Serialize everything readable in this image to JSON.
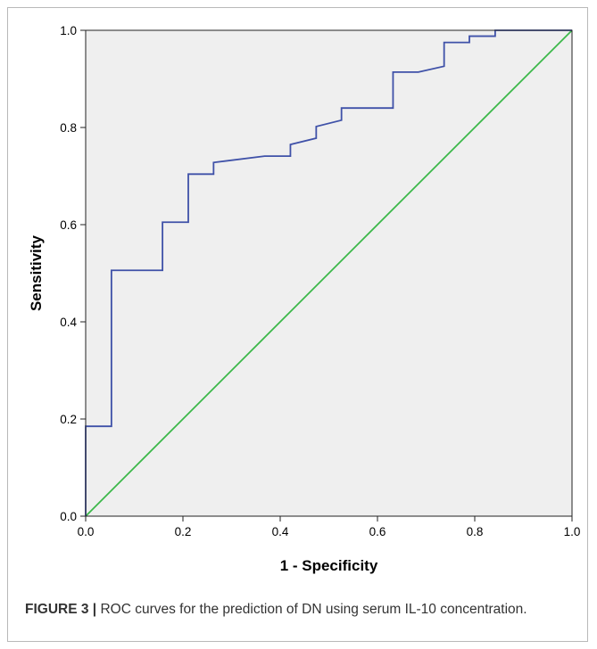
{
  "chart_data": {
    "type": "line",
    "xlabel": "1 - Specificity",
    "ylabel": "Sensitivity",
    "xlim": [
      0.0,
      1.0
    ],
    "ylim": [
      0.0,
      1.0
    ],
    "x_ticks": [
      "0.0",
      "0.2",
      "0.4",
      "0.6",
      "0.8",
      "1.0"
    ],
    "y_ticks": [
      "0.0",
      "0.2",
      "0.4",
      "0.6",
      "0.8",
      "1.0"
    ],
    "grid": false,
    "background_color": "#efefef",
    "series": [
      {
        "color": "#3f51a8",
        "x": [
          0.0,
          0.0,
          0.053,
          0.053,
          0.158,
          0.158,
          0.211,
          0.211,
          0.263,
          0.263,
          0.368,
          0.421,
          0.421,
          0.474,
          0.474,
          0.526,
          0.526,
          0.632,
          0.632,
          0.684,
          0.737,
          0.737,
          0.789,
          0.789,
          0.842,
          0.842,
          1.0
        ],
        "y": [
          0.0,
          0.185,
          0.185,
          0.506,
          0.506,
          0.605,
          0.605,
          0.704,
          0.704,
          0.728,
          0.741,
          0.741,
          0.765,
          0.778,
          0.802,
          0.815,
          0.84,
          0.84,
          0.914,
          0.914,
          0.926,
          0.975,
          0.975,
          0.988,
          0.988,
          1.0,
          1.0
        ]
      },
      {
        "color": "#3cb84a",
        "x": [
          0.0,
          1.0
        ],
        "y": [
          0.0,
          1.0
        ]
      }
    ]
  },
  "caption": {
    "label": "FIGURE 3 |",
    "text": " ROC curves for the prediction of DN using serum IL-10 concentration."
  }
}
